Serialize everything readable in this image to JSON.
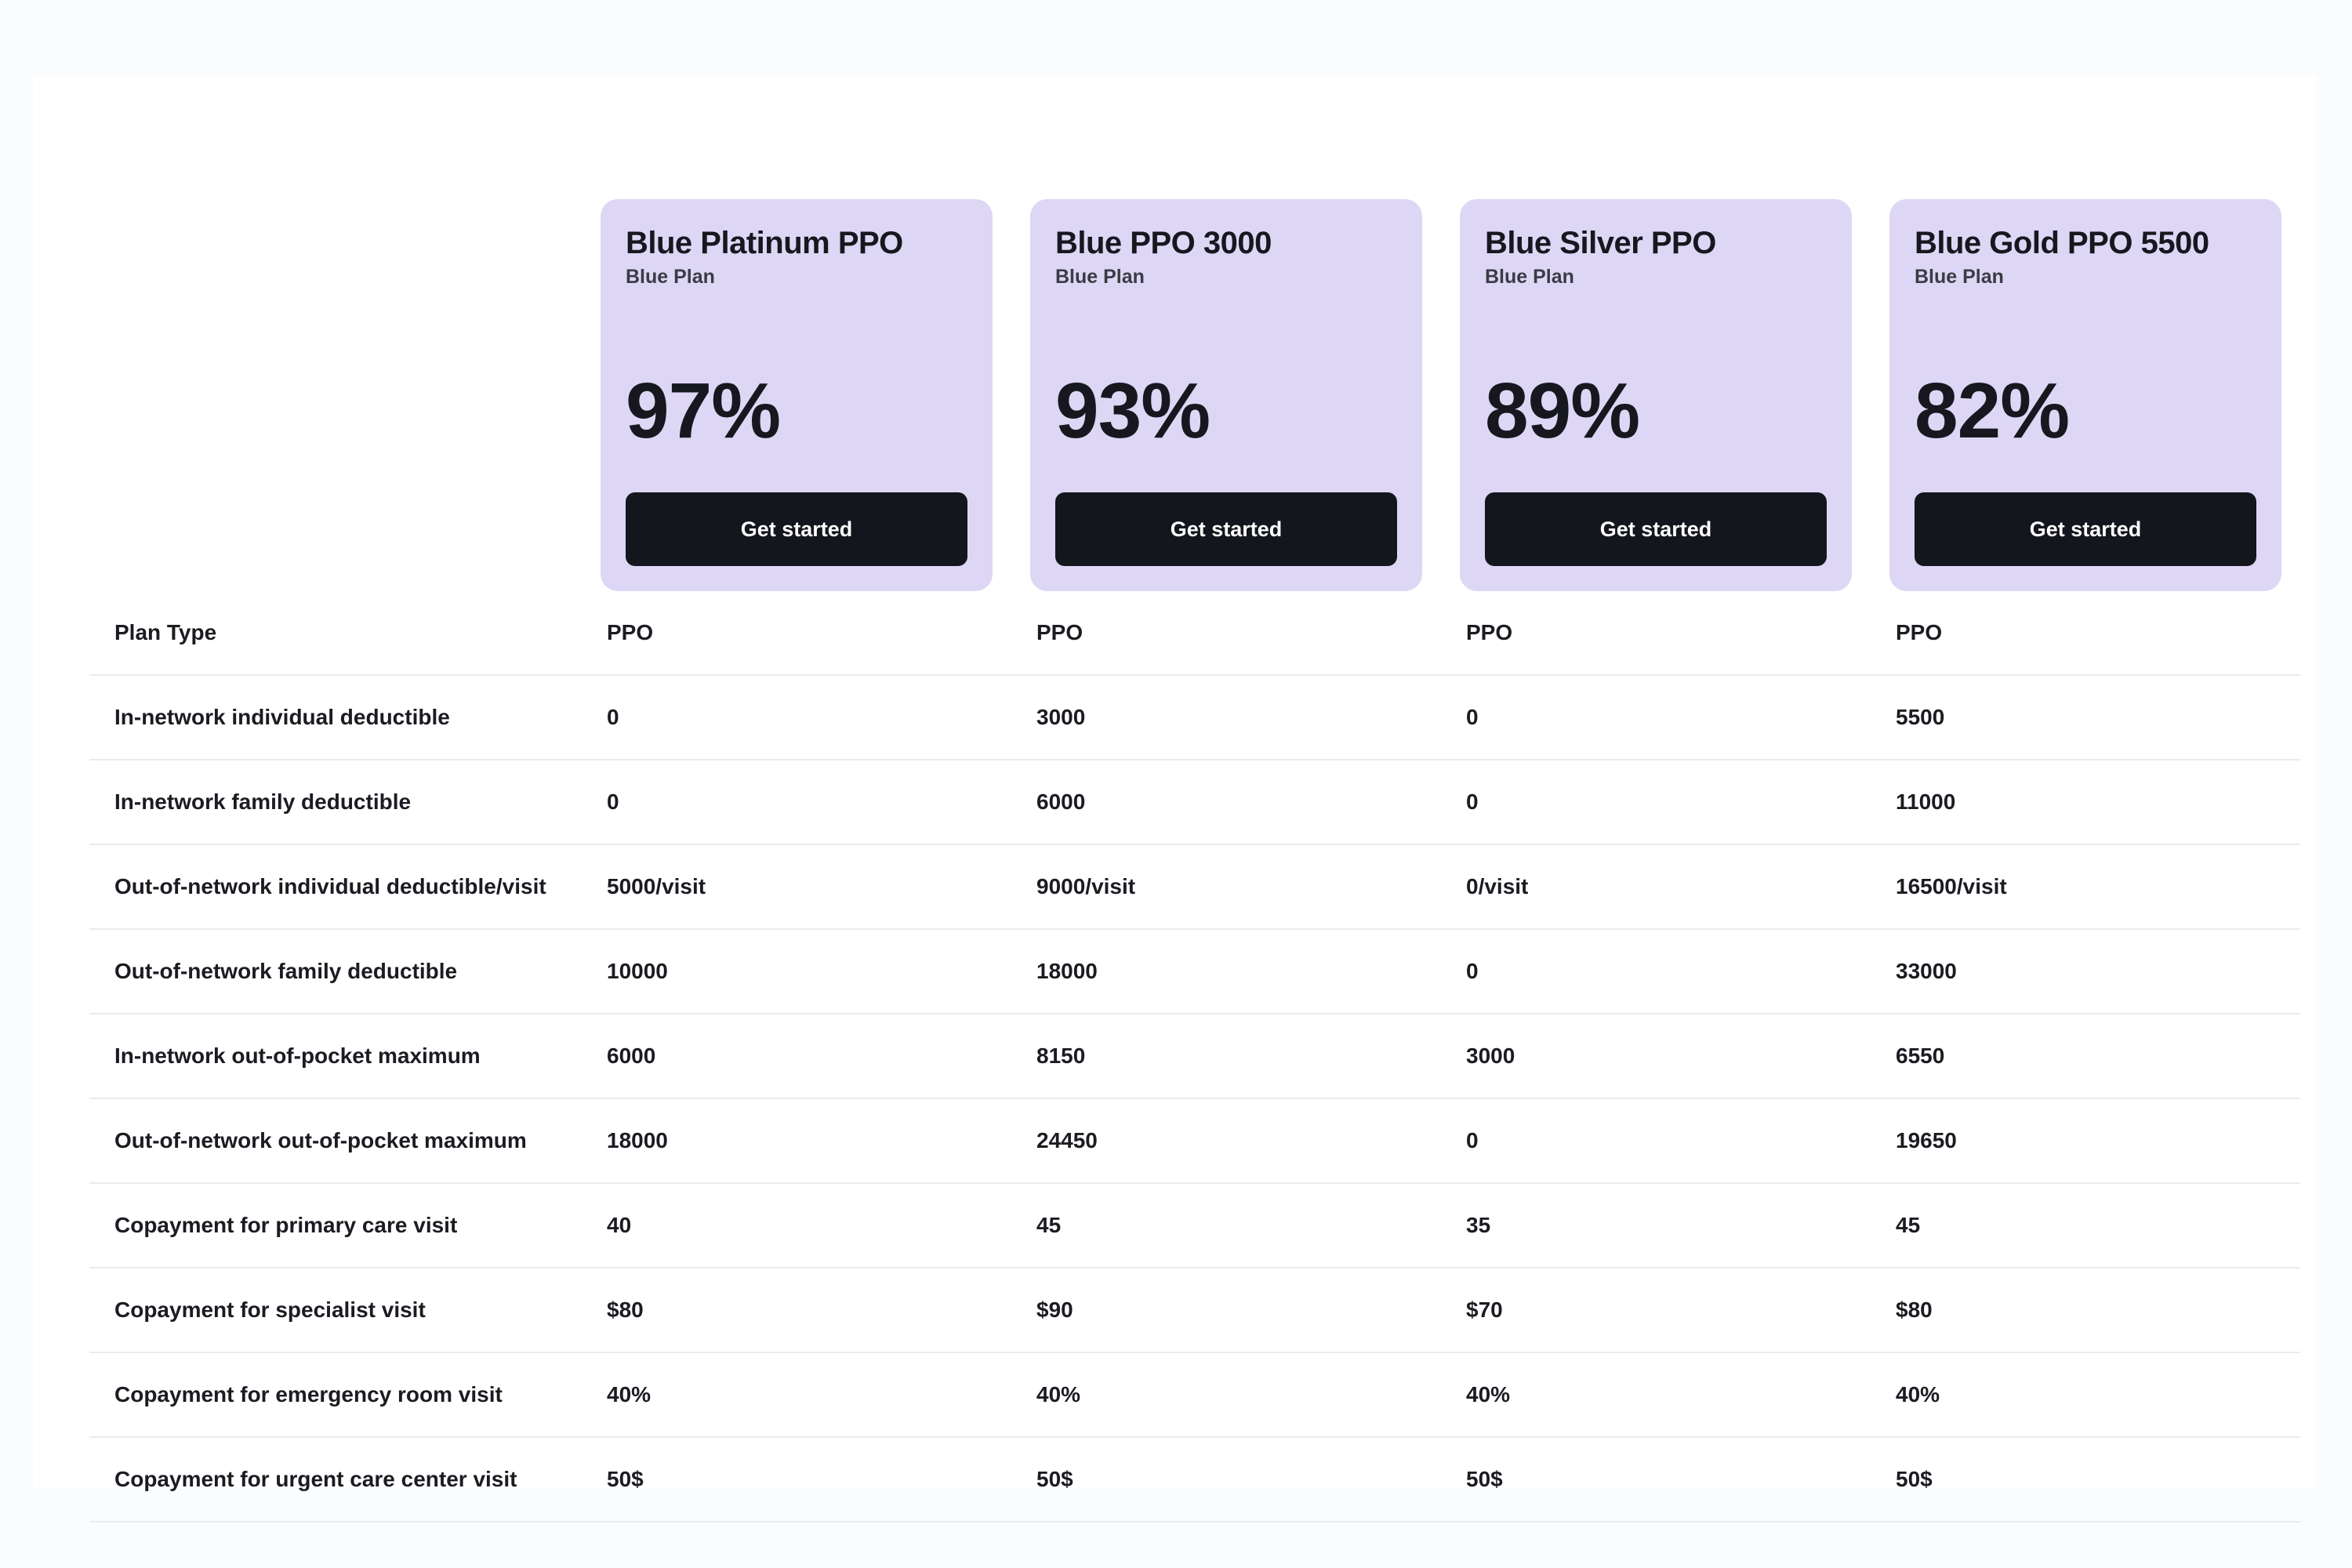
{
  "plans": [
    {
      "name": "Blue Platinum PPO",
      "subtitle": "Blue Plan",
      "percent": "97%",
      "cta": "Get started"
    },
    {
      "name": "Blue PPO 3000",
      "subtitle": "Blue Plan",
      "percent": "93%",
      "cta": "Get started"
    },
    {
      "name": "Blue Silver PPO",
      "subtitle": "Blue Plan",
      "percent": "89%",
      "cta": "Get started"
    },
    {
      "name": "Blue Gold PPO 5500",
      "subtitle": "Blue Plan",
      "percent": "82%",
      "cta": "Get started"
    }
  ],
  "rows": [
    {
      "label": "Plan Type",
      "values": [
        "PPO",
        "PPO",
        "PPO",
        "PPO"
      ]
    },
    {
      "label": "In-network individual deductible",
      "values": [
        "0",
        "3000",
        "0",
        "5500"
      ]
    },
    {
      "label": "In-network family deductible",
      "values": [
        "0",
        "6000",
        "0",
        "11000"
      ]
    },
    {
      "label": "Out-of-network individual deductible/visit",
      "values": [
        "5000/visit",
        "9000/visit",
        "0/visit",
        "16500/visit"
      ]
    },
    {
      "label": "Out-of-network family deductible",
      "values": [
        "10000",
        "18000",
        "0",
        "33000"
      ]
    },
    {
      "label": "In-network out-of-pocket maximum",
      "values": [
        "6000",
        "8150",
        "3000",
        "6550"
      ]
    },
    {
      "label": "Out-of-network out-of-pocket maximum",
      "values": [
        "18000",
        "24450",
        "0",
        "19650"
      ]
    },
    {
      "label": "Copayment for primary care visit",
      "values": [
        "40",
        "45",
        "35",
        "45"
      ]
    },
    {
      "label": "Copayment for specialist visit",
      "values": [
        "$80",
        "$90",
        "$70",
        "$80"
      ]
    },
    {
      "label": "Copayment for emergency room visit",
      "values": [
        "40%",
        "40%",
        "40%",
        "40%"
      ]
    },
    {
      "label": "Copayment for urgent care center visit",
      "values": [
        "50$",
        "50$",
        "50$",
        "50$"
      ]
    }
  ],
  "colors": {
    "card_background": "#ddd7f5",
    "button_background": "#14161d",
    "button_text": "#ffffff",
    "divider": "#eaebee",
    "page_background": "#fbfcfe"
  }
}
